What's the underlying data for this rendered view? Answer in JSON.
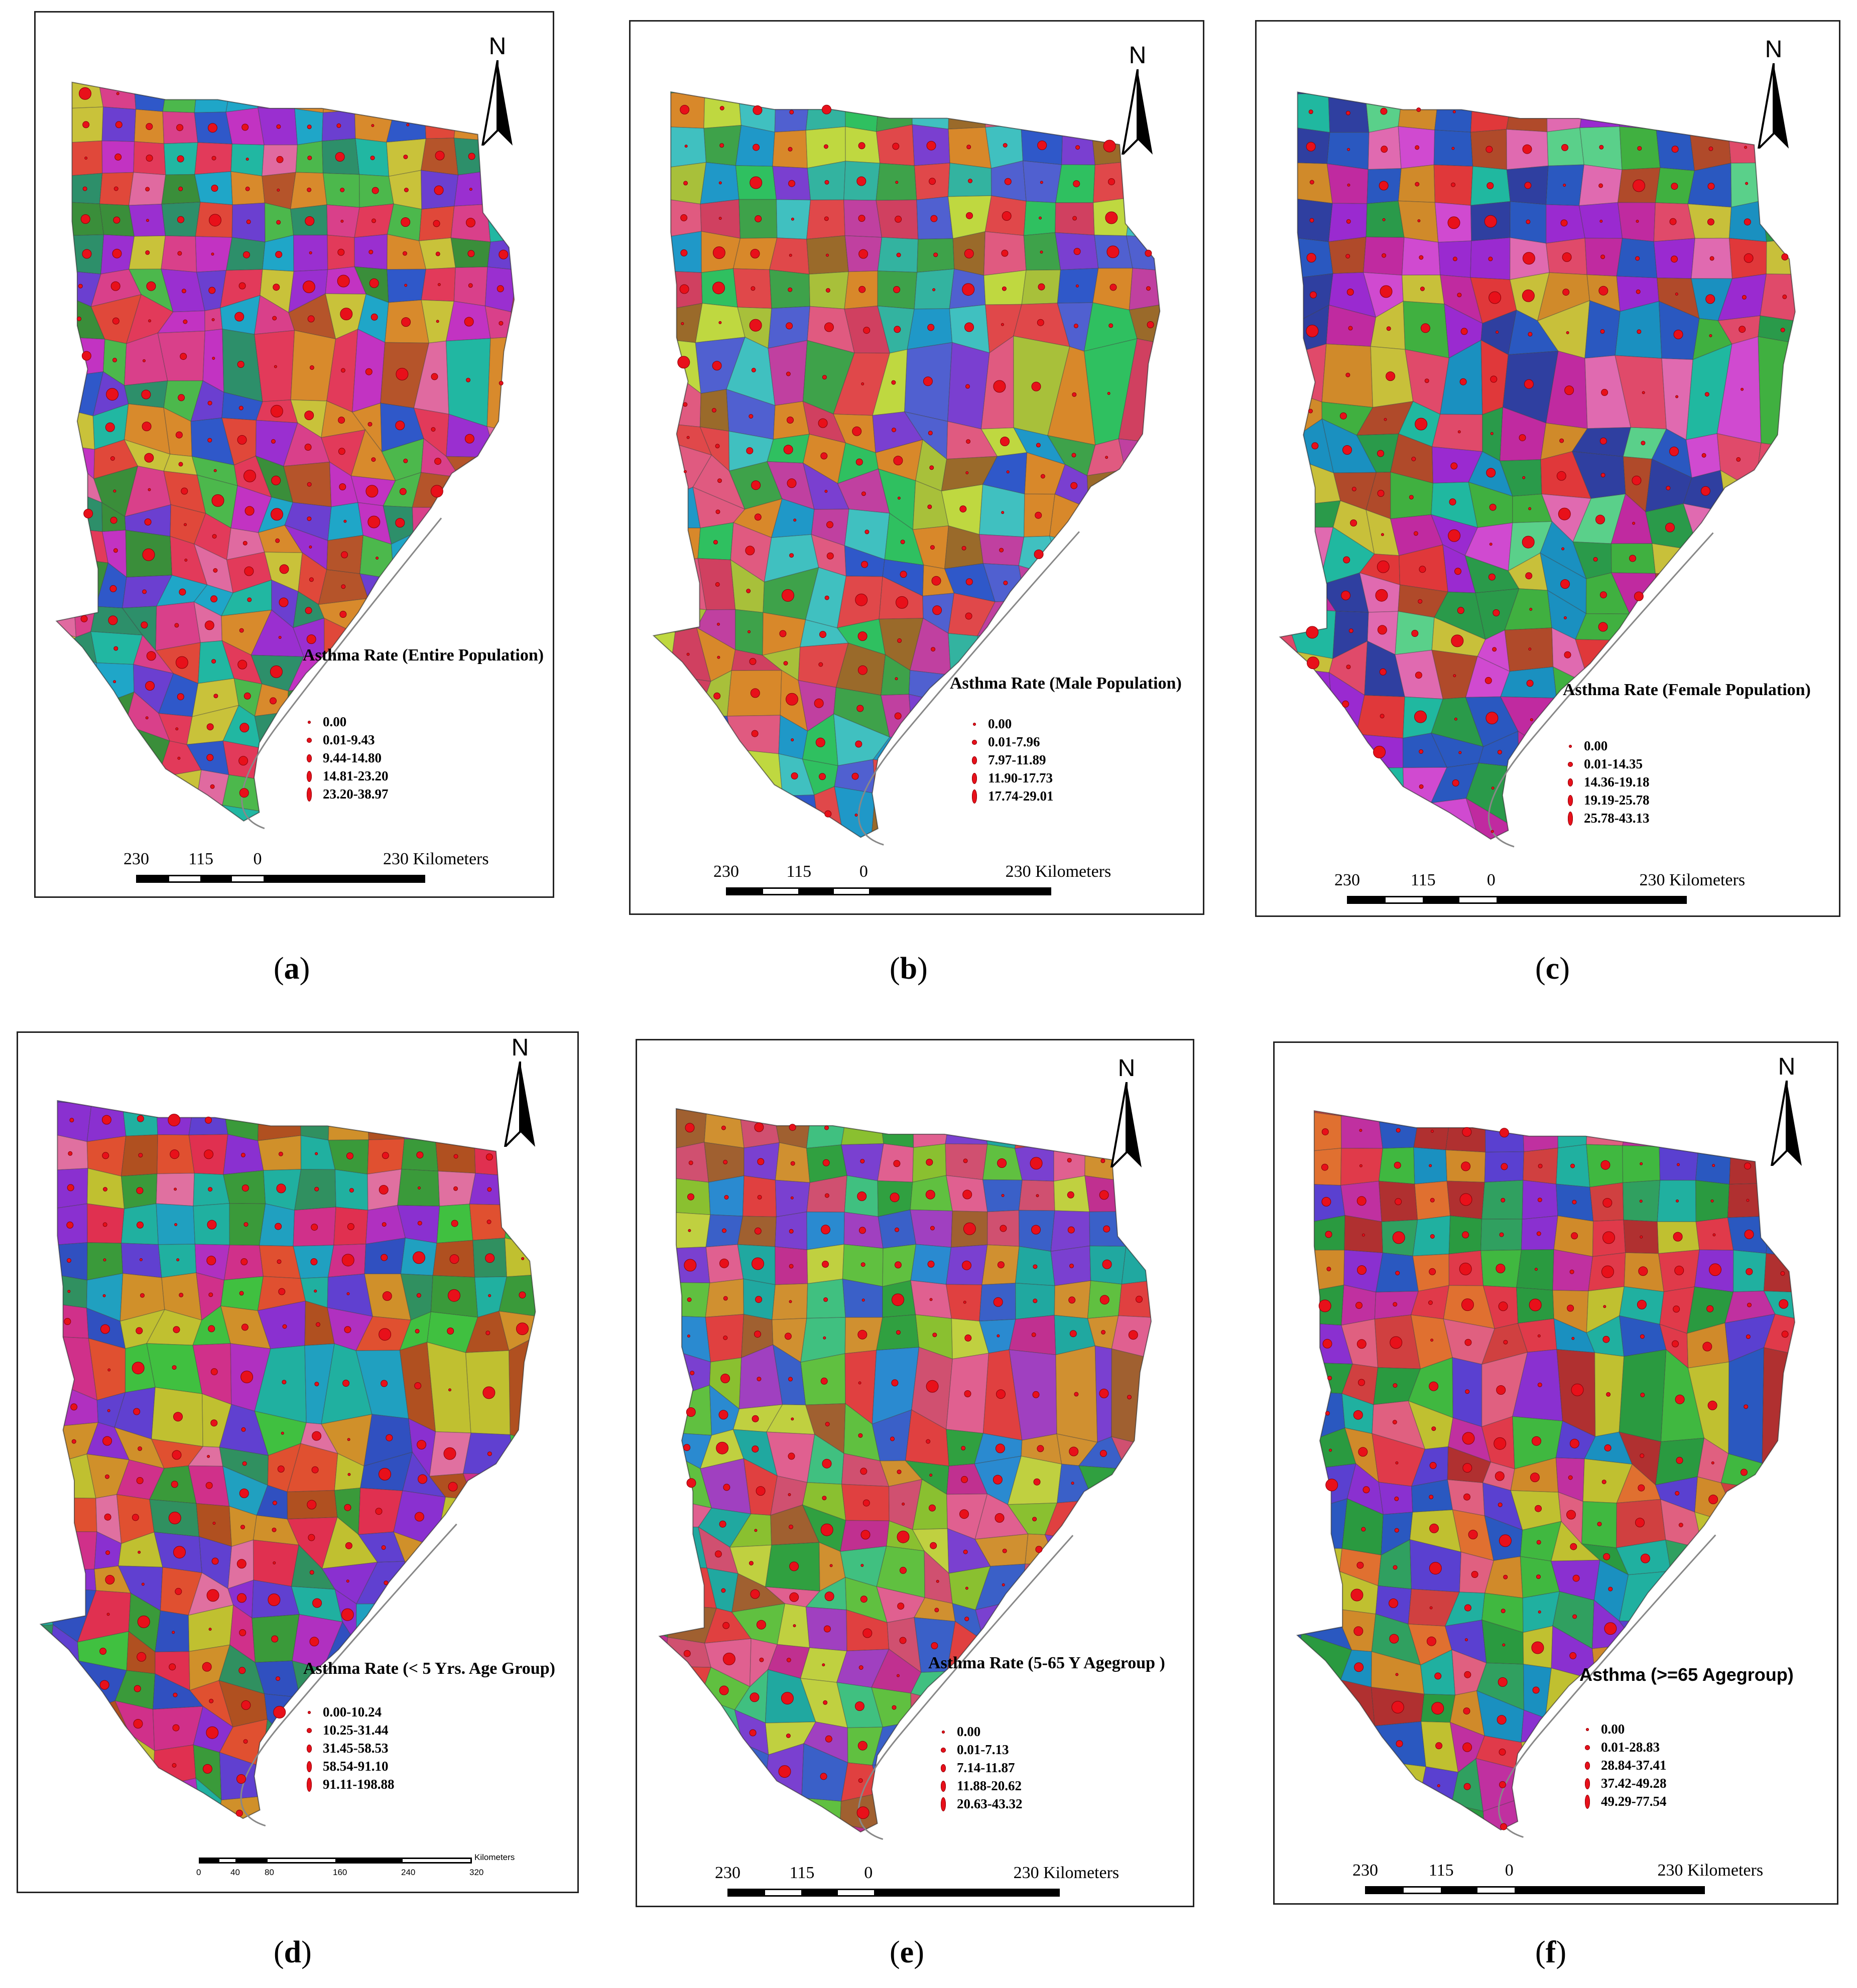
{
  "colors": {
    "dot": "#e8101a",
    "dot_edge": "#8a0008",
    "frame": "#222222"
  },
  "north_label": "N",
  "panels": [
    {
      "id": "a",
      "caption": "a",
      "legend_title": "Asthma Rate (Entire Population)",
      "classes": [
        "0.00",
        "0.01-9.43",
        "9.44-14.80",
        "14.81-23.20",
        "23.20-38.97"
      ],
      "scale_labels": [
        "230",
        "115",
        "0",
        "230 Kilometers"
      ]
    },
    {
      "id": "b",
      "caption": "b",
      "legend_title": "Asthma Rate (Male Population)",
      "classes": [
        "0.00",
        "0.01-7.96",
        "7.97-11.89",
        "11.90-17.73",
        "17.74-29.01"
      ],
      "scale_labels": [
        "230",
        "115",
        "0",
        "230 Kilometers"
      ]
    },
    {
      "id": "c",
      "caption": "c",
      "legend_title": "Asthma Rate (Female Population)",
      "classes": [
        "0.00",
        "0.01-14.35",
        "14.36-19.18",
        "19.19-25.78",
        "25.78-43.13"
      ],
      "scale_labels": [
        "230",
        "115",
        "0",
        "230 Kilometers"
      ]
    },
    {
      "id": "d",
      "caption": "d",
      "legend_title": "Asthma Rate (< 5 Yrs. Age Group)",
      "classes": [
        "0.00-10.24",
        "10.25-31.44",
        "31.45-58.53",
        "58.54-91.10",
        "91.11-198.88"
      ],
      "scale_labels": [
        "0",
        "40",
        "80",
        "160",
        "240",
        "320",
        "Kilometers"
      ]
    },
    {
      "id": "e",
      "caption": "e",
      "legend_title": "Asthma Rate (5-65 Y Agegroup )",
      "classes": [
        "0.00",
        "0.01-7.13",
        "7.14-11.87",
        "11.88-20.62",
        "20.63-43.32"
      ],
      "scale_labels": [
        "230",
        "115",
        "0",
        "230 Kilometers"
      ]
    },
    {
      "id": "f",
      "caption": "f",
      "legend_title": "Asthma (>=65 Agegroup)",
      "classes": [
        "0.00",
        "0.01-28.83",
        "28.84-37.41",
        "37.42-49.28",
        "49.29-77.54"
      ],
      "scale_labels": [
        "230",
        "115",
        "0",
        "230 Kilometers"
      ]
    }
  ]
}
